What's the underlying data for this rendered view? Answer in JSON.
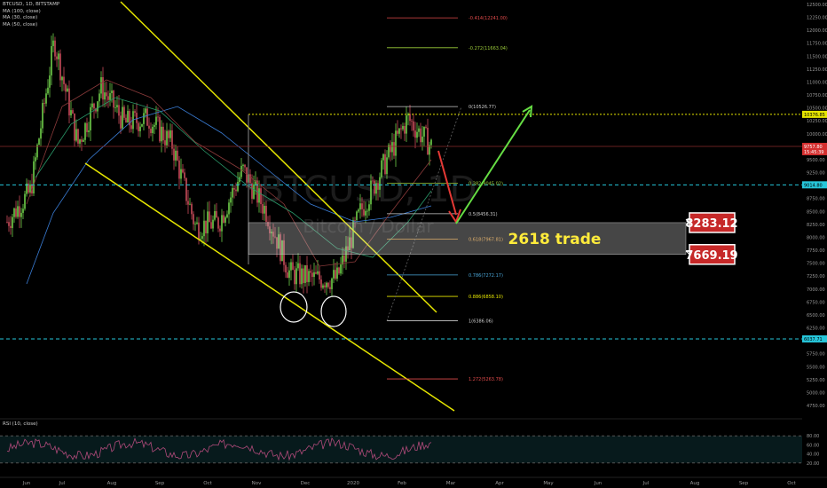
{
  "symbol": "BTCUSD, 1D, BITSTAMP",
  "indicators": [
    "MA (100, close)",
    "MA (30, close)",
    "MA (50, close)"
  ],
  "rsi_label": "RSI (10, close)",
  "watermark": {
    "ticker": "BTCUSD",
    "interval": "1D",
    "name": "Bitcoin / Dollar"
  },
  "annotation_text": "2618 trade",
  "chart_data": {
    "type": "line",
    "title": "",
    "xlabel": "",
    "ylabel": "",
    "x_ticks": [
      "Jun",
      "Jul",
      "Aug",
      "Sep",
      "Oct",
      "Nov",
      "Dec",
      "2020",
      "Feb",
      "Mar",
      "Apr",
      "May",
      "Jun",
      "Jul",
      "Aug",
      "Sep",
      "Oct"
    ],
    "y_ticks": [
      12500,
      12250,
      12000,
      11750,
      11500,
      11250,
      11000,
      10750,
      10500,
      10250,
      10000,
      9750,
      9500,
      9250,
      9000,
      8750,
      8500,
      8250,
      8000,
      7750,
      7500,
      7250,
      7000,
      6750,
      6500,
      6250,
      6000,
      5750,
      5500,
      5250,
      5000,
      4750
    ],
    "ylim": [
      4500,
      12600
    ],
    "price_series": [
      {
        "month": "Jun",
        "close": 8300
      },
      {
        "month": "Jun",
        "close": 8900
      },
      {
        "month": "Jul",
        "close": 11800
      },
      {
        "month": "Jul",
        "close": 9800
      },
      {
        "month": "Aug",
        "close": 10900
      },
      {
        "month": "Aug",
        "close": 10200
      },
      {
        "month": "Sep",
        "close": 10300
      },
      {
        "month": "Sep",
        "close": 9800
      },
      {
        "month": "Oct",
        "close": 8200
      },
      {
        "month": "Oct",
        "close": 8300
      },
      {
        "month": "Nov",
        "close": 9300
      },
      {
        "month": "Nov",
        "close": 8500
      },
      {
        "month": "Dec",
        "close": 7300
      },
      {
        "month": "Dec",
        "close": 7200
      },
      {
        "month": "2020",
        "close": 7200
      },
      {
        "month": "2020",
        "close": 8500
      },
      {
        "month": "Feb",
        "close": 9400
      },
      {
        "month": "Feb",
        "close": 10300
      },
      {
        "month": "Feb",
        "close": 9757
      }
    ],
    "fib_levels": [
      {
        "label": "-0.414(12241.00)",
        "value": 12241,
        "color": "#e14b4b"
      },
      {
        "label": "-0.272(11663.04)",
        "value": 11663,
        "color": "#9ccc3a"
      },
      {
        "label": "0(10526.77)",
        "value": 10526,
        "color": "#cccccc"
      },
      {
        "label": "0.382(9045.02)",
        "value": 9045,
        "color": "#9ccc3a"
      },
      {
        "label": "0.5(8456.31)",
        "value": 8456,
        "color": "#cccccc"
      },
      {
        "label": "0.618(7967.81)",
        "value": 7967,
        "color": "#e8a03a"
      },
      {
        "label": "0.786(7272.17)",
        "value": 7272,
        "color": "#4aa6d8"
      },
      {
        "label": "0.886(6858.10)",
        "value": 6858,
        "color": "#e6e600"
      },
      {
        "label": "1(6386.06)",
        "value": 6386,
        "color": "#cccccc"
      },
      {
        "label": "1.272(5263.78)",
        "value": 5263,
        "color": "#e14b4b"
      }
    ],
    "horizontal_levels": [
      {
        "label": "10376.85",
        "value": 10376,
        "style": "dotted",
        "color": "#e6e600"
      },
      {
        "label": "9014.80",
        "value": 9014,
        "style": "dashed",
        "color": "#26c6da"
      },
      {
        "label": "6037.71",
        "value": 6037,
        "style": "dashed",
        "color": "#26c6da"
      }
    ],
    "current_price": {
      "label": "9757.80",
      "countdown": "15:45:39",
      "value": 9757
    },
    "zone": {
      "top_label": "8283.12",
      "bottom_label": "7669.19",
      "top": 8283,
      "bottom": 7669
    },
    "rsi": {
      "y_ticks": [
        80,
        60,
        40,
        20
      ]
    },
    "legend": "top-left",
    "grid": false
  }
}
